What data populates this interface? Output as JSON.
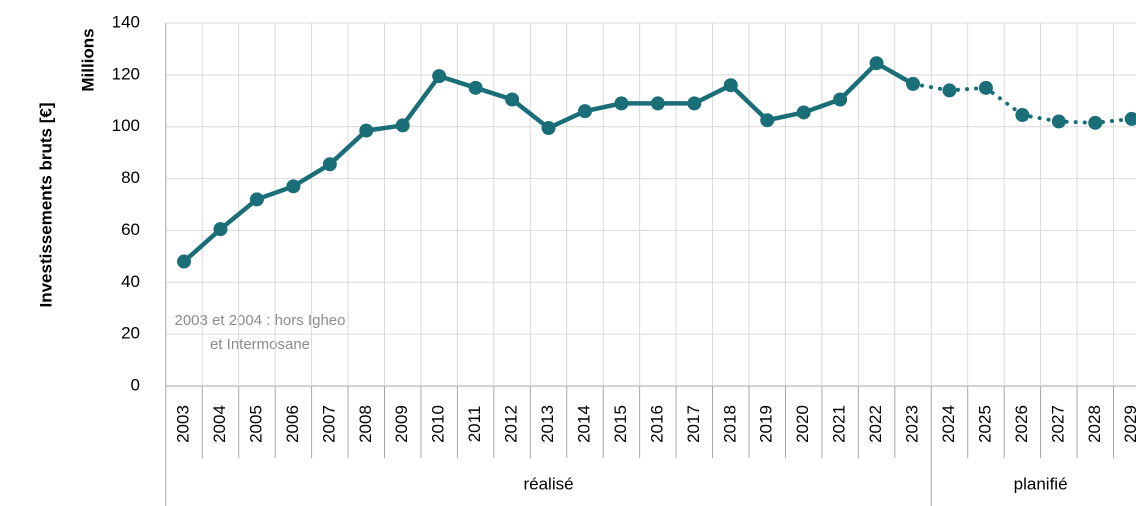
{
  "chart_data": {
    "type": "line",
    "y_title": "Investissements bruts [€]",
    "y_unit": "Millions",
    "annotation": [
      "2003 et 2004 : hors Igheo",
      "et Intermosane"
    ],
    "categories": [
      "2003",
      "2004",
      "2005",
      "2006",
      "2007",
      "2008",
      "2009",
      "2010",
      "2011",
      "2012",
      "2013",
      "2014",
      "2015",
      "2016",
      "2017",
      "2018",
      "2019",
      "2020",
      "2021",
      "2022",
      "2023",
      "2024",
      "2025",
      "2026",
      "2027",
      "2028",
      "2029"
    ],
    "values": [
      48,
      60.5,
      72,
      77,
      85.5,
      98.5,
      100.5,
      119.5,
      115,
      110.5,
      99.5,
      106,
      109,
      109,
      109,
      116,
      102.5,
      105.5,
      110.5,
      124.5,
      116.5,
      114,
      115,
      104.5,
      102,
      101.5,
      103
    ],
    "color": "#1a6e78",
    "groups": [
      {
        "label": "réalisé",
        "from": "2003",
        "to": "2023",
        "style": "solid"
      },
      {
        "label": "planifié",
        "from": "2024",
        "to": "2029",
        "style": "dotted"
      }
    ],
    "ylim": [
      0,
      140
    ],
    "yticks": [
      0,
      20,
      40,
      60,
      80,
      100,
      120,
      140
    ],
    "grid": true
  }
}
